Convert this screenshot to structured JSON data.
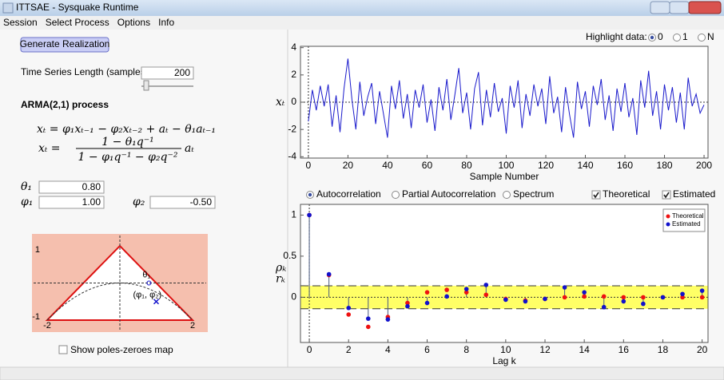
{
  "window": {
    "title": "ITTSAE - Sysquake Runtime"
  },
  "menu": [
    "Session",
    "Select Process",
    "Options",
    "Info"
  ],
  "controls": {
    "button": "Generate Realization",
    "length_label": "Time Series Length (samples):",
    "length_value": "200",
    "process_title": "ARMA(2,1) process",
    "formula1": "xₜ = φ₁xₜ₋₁ − φ₂xₜ₋₂ + aₜ − θ₁aₜ₋₁",
    "formula2": {
      "lhs": "xₜ =",
      "numerator": "1 − θ₁q⁻¹",
      "denominator": "1 − φ₁q⁻¹ − φ₂q⁻²",
      "rhs": "aₜ"
    },
    "theta1_label": "θ₁",
    "theta1_value": "0.80",
    "phi1_label": "φ₁",
    "phi1_value": "1.00",
    "phi2_label": "φ₂",
    "phi2_value": "-0.50",
    "show_poles": "Show poles-zeroes map"
  },
  "stability_diagram": {
    "xlim": [
      -2,
      2
    ],
    "ylim": [
      -1,
      1
    ],
    "xticks": [
      -2,
      2
    ],
    "yticks": [
      -1,
      1
    ],
    "theta_label": "θ₁",
    "phi_label": "(φ₁, φ₂)"
  },
  "highlight": {
    "label": "Highlight data:",
    "options": [
      "0",
      "1",
      "N"
    ],
    "selected": 0
  },
  "plot_options": {
    "options": [
      "Autocorrelation",
      "Partial Autocorrelation",
      "Spectrum"
    ],
    "selected": 0,
    "checks": [
      {
        "label": "Theoretical",
        "checked": true
      },
      {
        "label": "Estimated",
        "checked": true
      }
    ]
  },
  "chart_data": [
    {
      "type": "line",
      "xlabel": "Sample Number",
      "ylabel": "xₜ",
      "color": "#1a1acc",
      "xlim": [
        -4,
        202
      ],
      "ylim": [
        -4.1,
        4.1
      ],
      "xticks": [
        0,
        20,
        40,
        60,
        80,
        100,
        120,
        140,
        160,
        180,
        200
      ],
      "yticks": [
        -4,
        -2,
        0,
        2,
        4
      ],
      "x": [
        0,
        2,
        4,
        6,
        8,
        10,
        12,
        14,
        16,
        18,
        20,
        22,
        24,
        26,
        28,
        30,
        32,
        34,
        36,
        38,
        40,
        42,
        44,
        46,
        48,
        50,
        52,
        54,
        56,
        58,
        60,
        62,
        64,
        66,
        68,
        70,
        72,
        74,
        76,
        78,
        80,
        82,
        84,
        86,
        88,
        90,
        92,
        94,
        96,
        98,
        100,
        102,
        104,
        106,
        108,
        110,
        112,
        114,
        116,
        118,
        120,
        122,
        124,
        126,
        128,
        130,
        132,
        134,
        136,
        138,
        140,
        142,
        144,
        146,
        148,
        150,
        152,
        154,
        156,
        158,
        160,
        162,
        164,
        166,
        168,
        170,
        172,
        174,
        176,
        178,
        180,
        182,
        184,
        186,
        188,
        190,
        192,
        194,
        196,
        198,
        200
      ],
      "values": [
        -1.4,
        0.9,
        -0.6,
        1.2,
        -0.3,
        1.3,
        -1.8,
        0.5,
        -2.2,
        1.0,
        3.2,
        0.2,
        -2.0,
        1.5,
        -1.0,
        0.4,
        1.4,
        -1.6,
        0.8,
        -0.9,
        -2.6,
        1.2,
        -0.5,
        1.6,
        -1.2,
        0.6,
        -1.9,
        0.9,
        -0.4,
        1.3,
        -1.5,
        0.2,
        -2.1,
        1.1,
        -0.6,
        1.7,
        -1.3,
        0.5,
        2.5,
        -0.8,
        0.7,
        -2.0,
        1.0,
        2.2,
        -1.7,
        0.9,
        -1.1,
        1.4,
        -0.7,
        0.3,
        -2.3,
        1.2,
        -0.4,
        1.6,
        -1.9,
        0.6,
        -1.0,
        1.3,
        -0.3,
        1.0,
        -1.6,
        1.9,
        -0.8,
        0.4,
        -2.2,
        1.1,
        -0.9,
        -2.6,
        1.5,
        -0.5,
        0.8,
        -1.8,
        1.2,
        -0.2,
        1.7,
        -1.3,
        0.5,
        -2.1,
        1.0,
        -0.7,
        1.4,
        -1.1,
        0.3,
        -2.4,
        1.6,
        -0.4,
        2.3,
        -1.0,
        0.8,
        -2.0,
        1.3,
        -0.6,
        1.1,
        -1.5,
        0.7,
        -2.0,
        1.8,
        -0.3,
        0.6,
        -0.8,
        -0.2
      ]
    },
    {
      "type": "stem",
      "xlabel": "Lag k",
      "ylabel": [
        "ρₖ",
        "rₖ"
      ],
      "legend": "top-right",
      "xlim": [
        -0.45,
        20.3
      ],
      "ylim": [
        -0.55,
        1.13
      ],
      "xticks": [
        0,
        2,
        4,
        6,
        8,
        10,
        12,
        14,
        16,
        18,
        20
      ],
      "yticks": [
        0,
        0.5,
        1
      ],
      "band": [
        -0.14,
        0.14
      ],
      "band_color": "#ffff66",
      "x": [
        0,
        1,
        2,
        3,
        4,
        5,
        6,
        7,
        8,
        9,
        10,
        11,
        12,
        13,
        14,
        15,
        16,
        17,
        18,
        19,
        20
      ],
      "series": [
        {
          "name": "Theoretical",
          "color": "#ee1111",
          "values": [
            1,
            0.27,
            -0.21,
            -0.36,
            -0.24,
            -0.07,
            0.06,
            0.09,
            0.06,
            0.03,
            -0.02,
            -0.04,
            -0.02,
            0,
            0.01,
            0.01,
            0,
            0,
            0,
            0,
            0
          ]
        },
        {
          "name": "Estimated",
          "color": "#1111cc",
          "stem": true,
          "values": [
            1,
            0.28,
            -0.13,
            -0.26,
            -0.27,
            -0.11,
            -0.07,
            0.01,
            0.1,
            0.15,
            -0.03,
            -0.05,
            -0.02,
            0.12,
            0.06,
            -0.12,
            -0.05,
            -0.08,
            0,
            0.04,
            0.08
          ]
        }
      ]
    }
  ]
}
